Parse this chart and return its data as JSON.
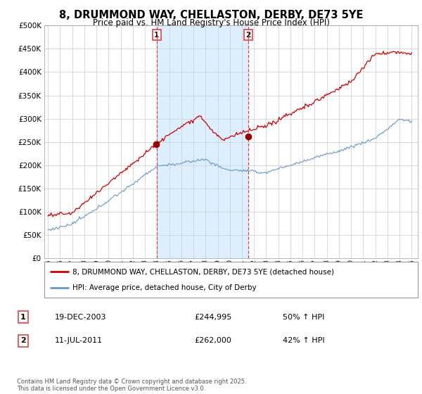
{
  "title": "8, DRUMMOND WAY, CHELLASTON, DERBY, DE73 5YE",
  "subtitle": "Price paid vs. HM Land Registry's House Price Index (HPI)",
  "legend_line1": "8, DRUMMOND WAY, CHELLASTON, DERBY, DE73 5YE (detached house)",
  "legend_line2": "HPI: Average price, detached house, City of Derby",
  "annotation1_date": "19-DEC-2003",
  "annotation1_price": "£244,995",
  "annotation1_hpi": "50% ↑ HPI",
  "annotation1_year": 2003.97,
  "annotation2_date": "11-JUL-2011",
  "annotation2_price": "£262,000",
  "annotation2_hpi": "42% ↑ HPI",
  "annotation2_year": 2011.53,
  "red_color": "#cc0000",
  "blue_color": "#6699cc",
  "vline_color": "#dd4444",
  "shade_color": "#ddeeff",
  "bg_color": "#ffffff",
  "grid_color": "#cccccc",
  "footer": "Contains HM Land Registry data © Crown copyright and database right 2025.\nThis data is licensed under the Open Government Licence v3.0.",
  "ylim": [
    0,
    500000
  ],
  "yticks": [
    0,
    50000,
    100000,
    150000,
    200000,
    250000,
    300000,
    350000,
    400000,
    450000,
    500000
  ],
  "xlim_start": 1994.7,
  "xlim_end": 2025.5
}
